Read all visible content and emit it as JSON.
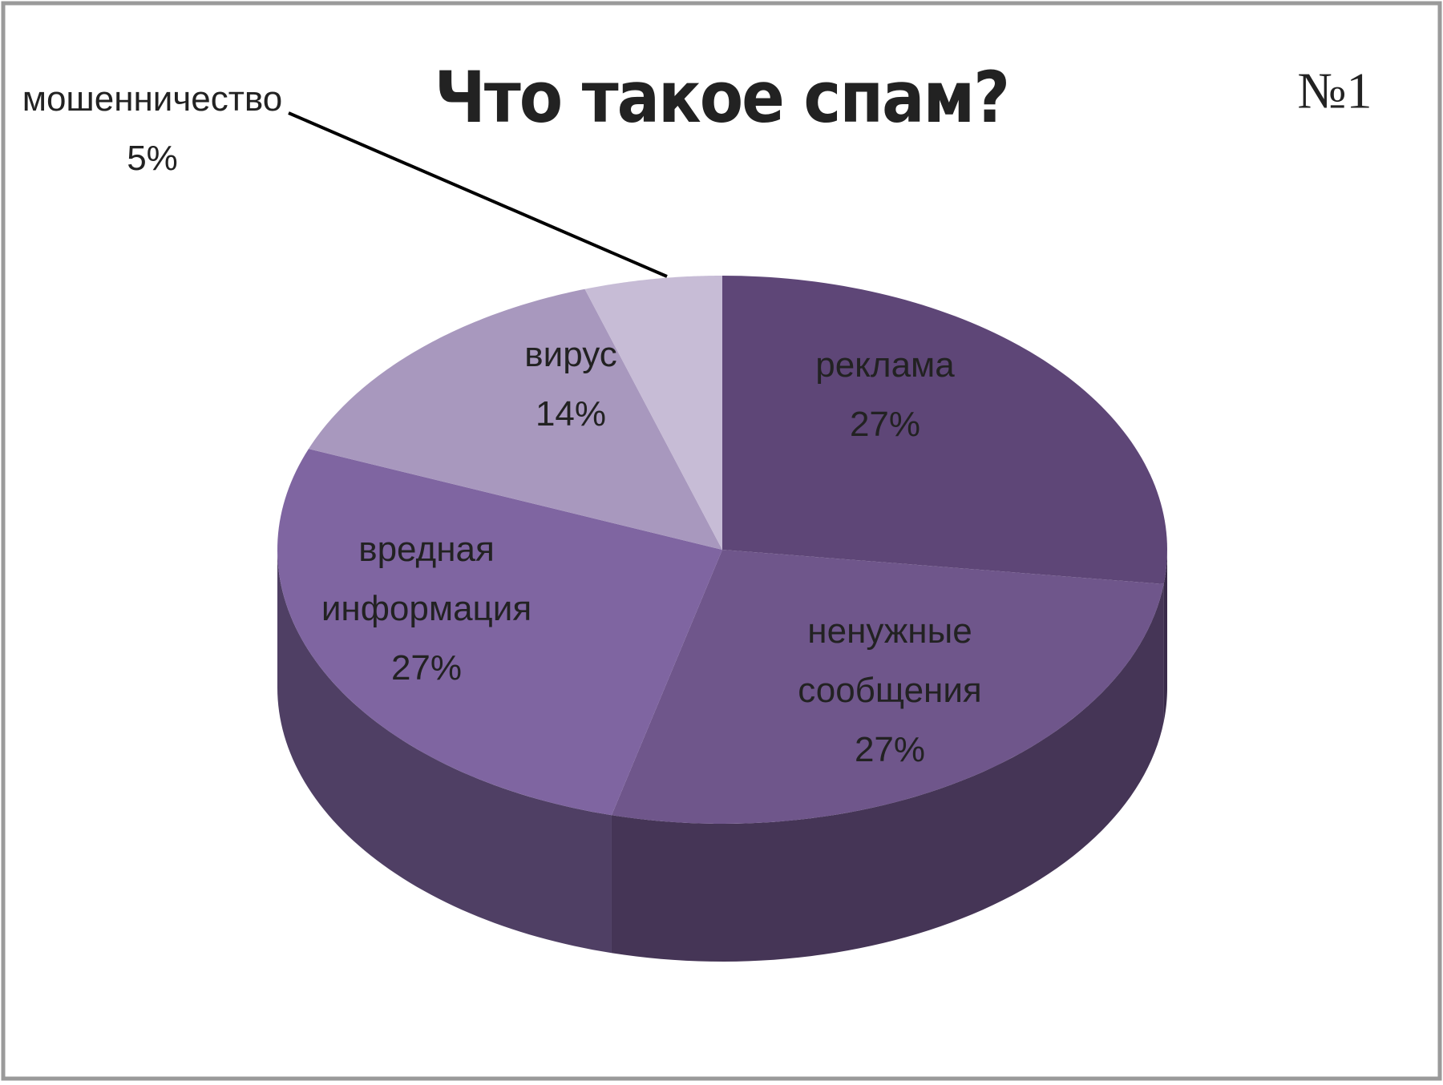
{
  "chart_data": {
    "type": "pie",
    "title": "Что такое спам?",
    "annotation": "№1",
    "categories": [
      "реклама",
      "ненужные сообщения",
      "вредная информация",
      "вирус",
      "мошенничество"
    ],
    "values": [
      27,
      27,
      27,
      14,
      5
    ],
    "value_labels": [
      "27%",
      "27%",
      "27%",
      "14%",
      "5%"
    ],
    "colors": [
      "#5e4677",
      "#6f568b",
      "#7f65a1",
      "#a898be",
      "#c7bcd6"
    ]
  }
}
